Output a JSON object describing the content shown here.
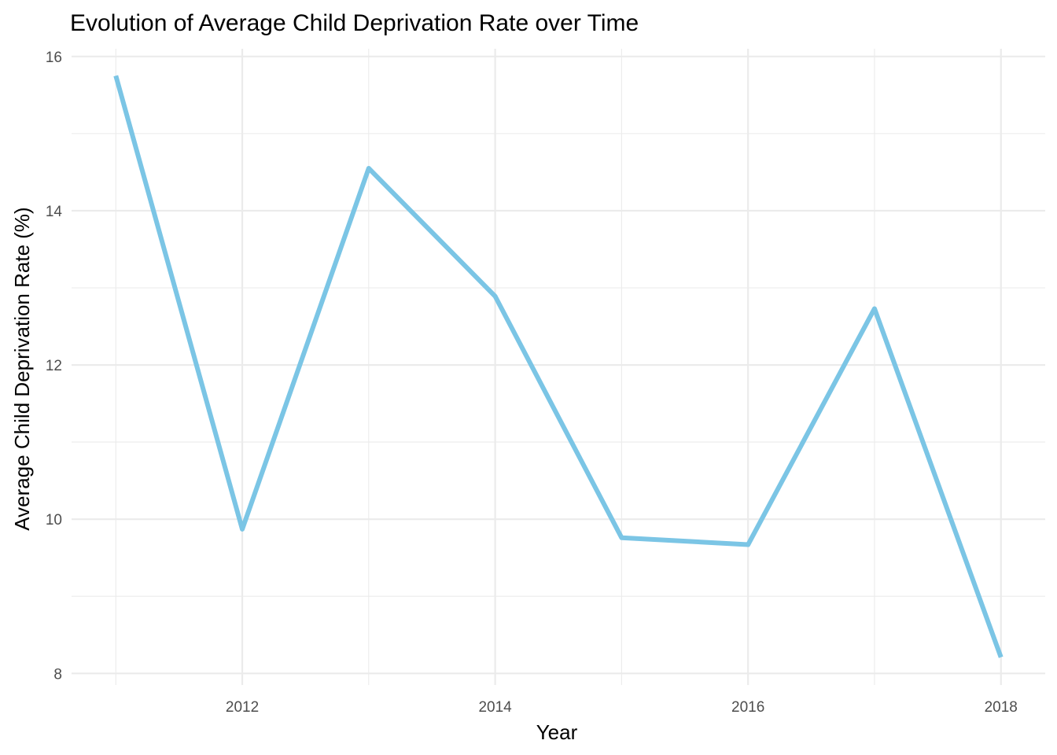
{
  "chart_data": {
    "type": "line",
    "title": "Evolution of Average Child Deprivation Rate over Time",
    "xlabel": "Year",
    "ylabel": "Average Child Deprivation Rate (%)",
    "x": [
      2011,
      2012,
      2013,
      2014,
      2015,
      2016,
      2017,
      2018
    ],
    "series": [
      {
        "values": [
          15.75,
          9.87,
          14.55,
          12.89,
          9.76,
          9.67,
          12.73,
          8.21
        ]
      }
    ],
    "x_ticks": [
      "2012",
      "2014",
      "2016",
      "2018"
    ],
    "y_ticks": [
      "8",
      "10",
      "12",
      "14",
      "16"
    ],
    "xlim": [
      2010.65,
      2018.35
    ],
    "ylim": [
      7.85,
      16.1
    ],
    "grid": true,
    "legend": "none",
    "line_color": "#7bc5e5"
  }
}
